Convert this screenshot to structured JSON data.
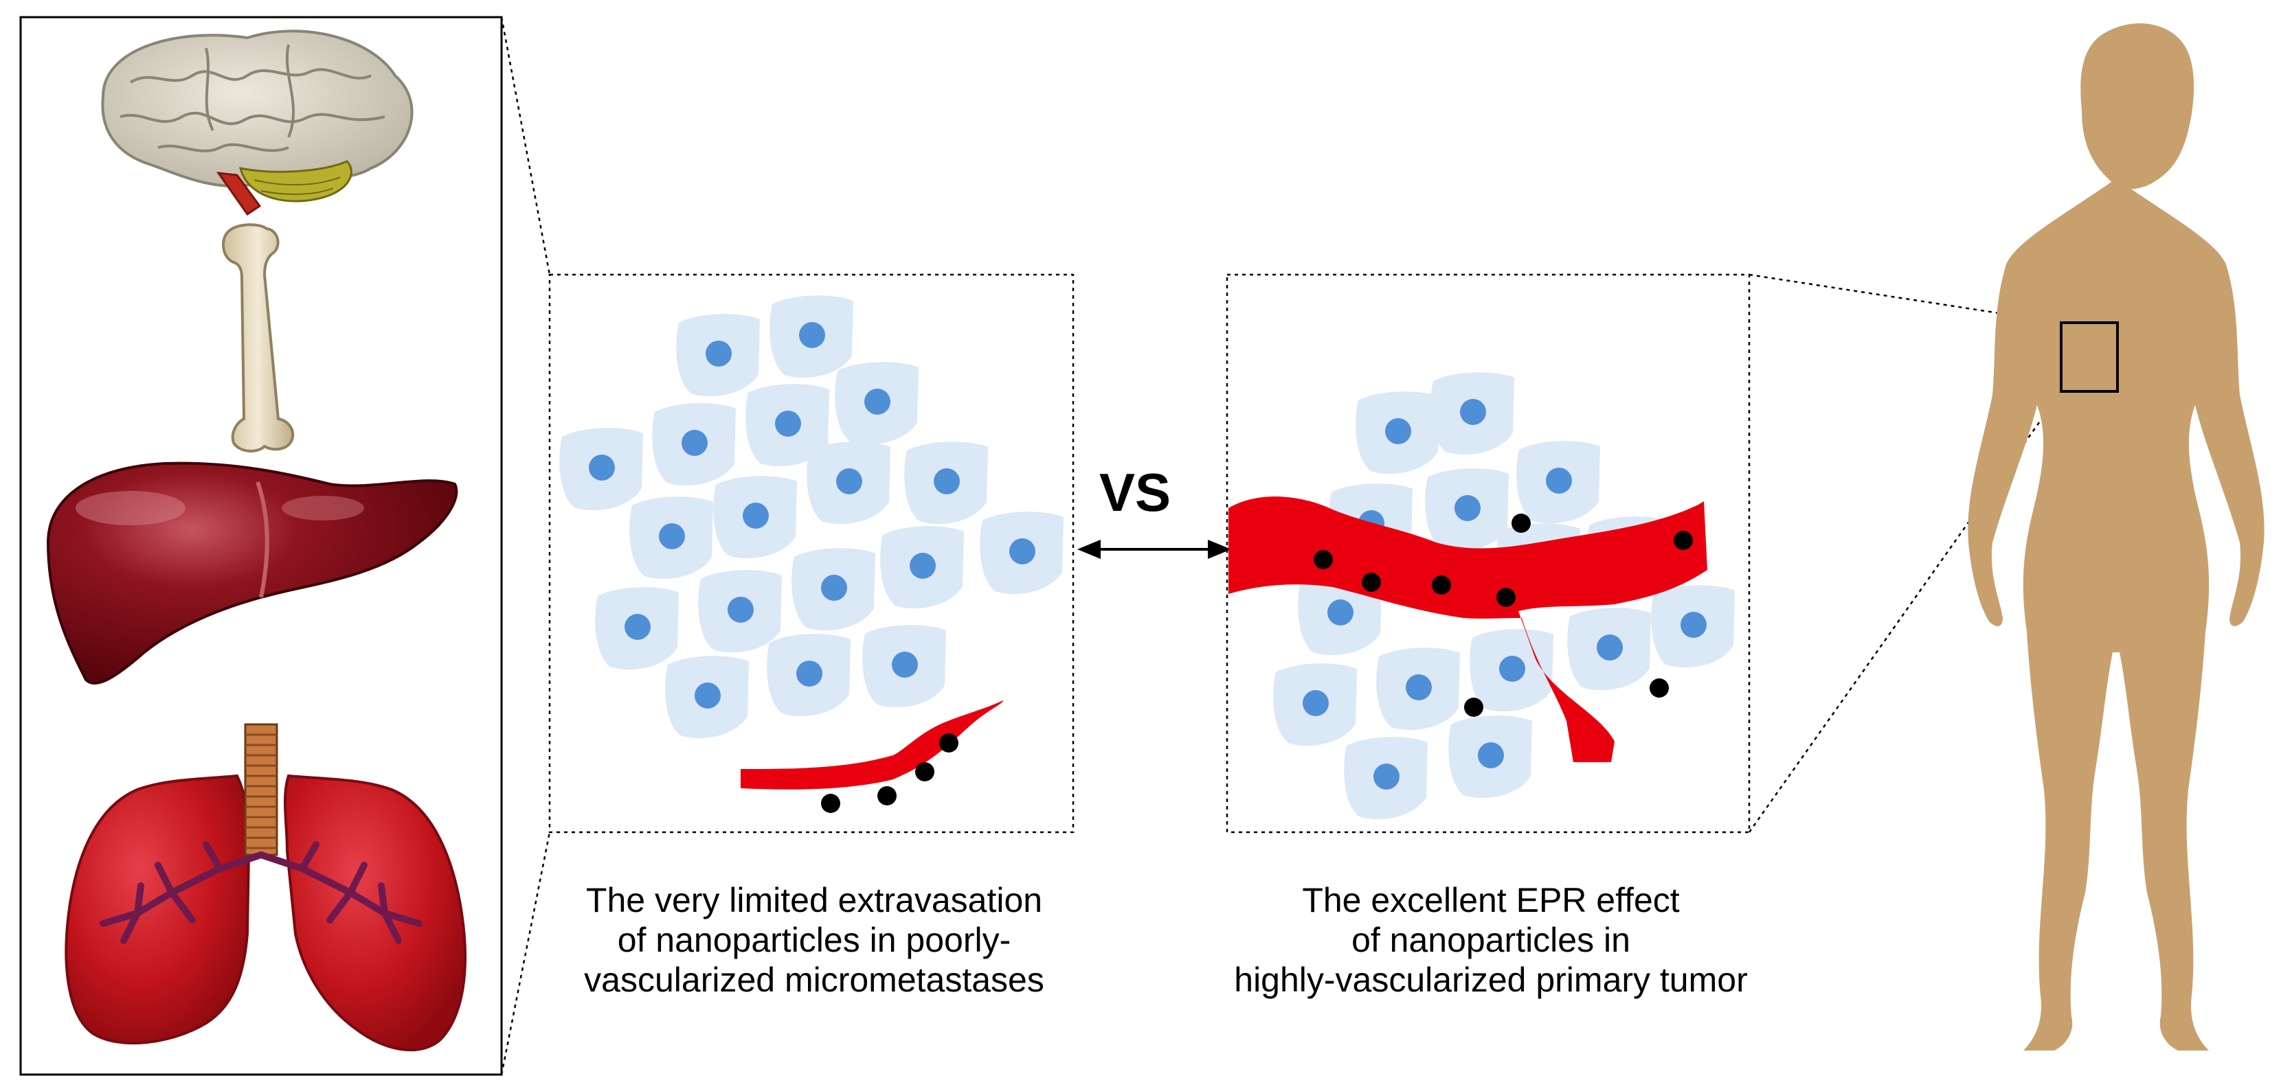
{
  "comparison_label": "VS",
  "left_caption": {
    "lines": [
      "The very limited extravasation",
      "of nanoparticles in poorly-",
      "vascularized micrometastases"
    ]
  },
  "right_caption": {
    "lines": [
      "The excellent EPR effect",
      "of nanoparticles in",
      "highly-vascularized primary tumor"
    ]
  },
  "organs": [
    "brain",
    "bone",
    "liver",
    "lungs"
  ],
  "colors": {
    "cell_fill": "#dbe8f5",
    "cell_nucleus": "#4f8fd6",
    "vessel": "#e8000f",
    "nanoparticle": "#000000",
    "body": "#c8a06e",
    "liver": "#7a0a12",
    "lungs": "#c4161f",
    "bone": "#e8dcc0",
    "brain": "#d6d1c4"
  }
}
